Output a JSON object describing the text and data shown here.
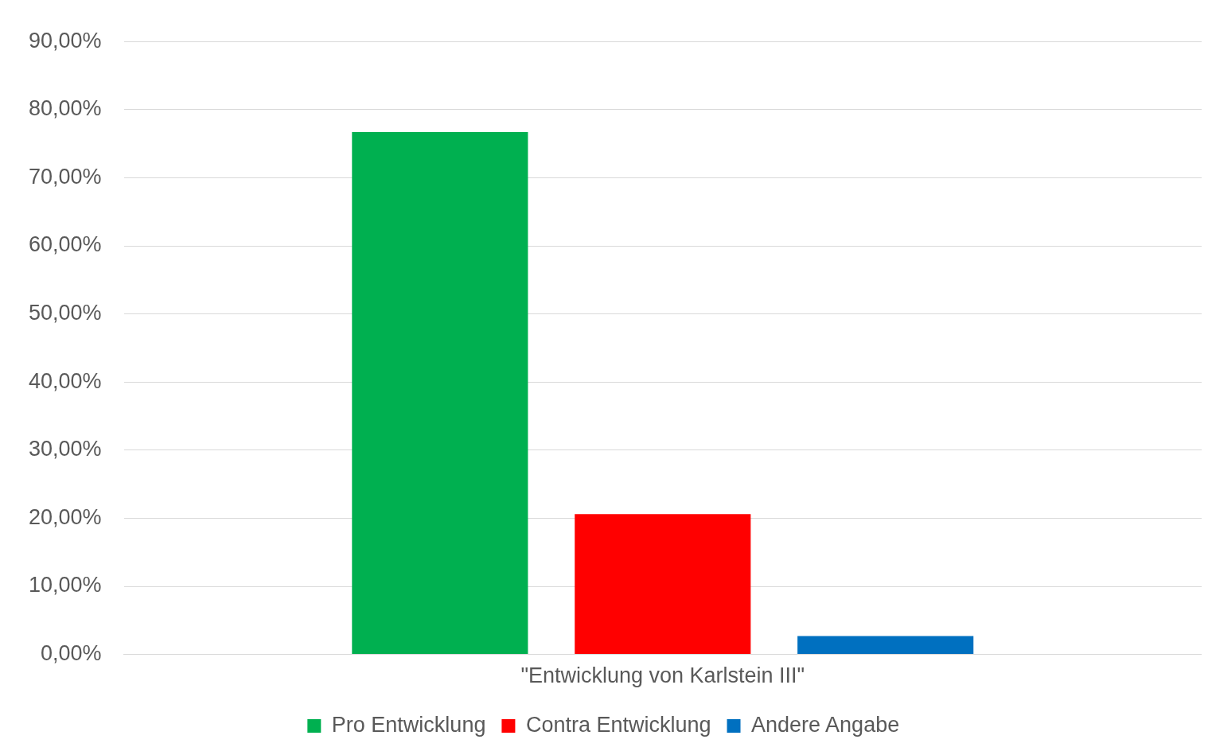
{
  "chart_data": {
    "type": "bar",
    "categories": [
      "\"Entwicklung von Karlstein III\""
    ],
    "series": [
      {
        "name": "Pro Entwicklung",
        "color": "#00b050",
        "values": [
          76.7
        ]
      },
      {
        "name": "Contra Entwicklung",
        "color": "#ff0000",
        "values": [
          20.6
        ]
      },
      {
        "name": "Andere Angabe",
        "color": "#0070c0",
        "values": [
          2.7
        ]
      }
    ],
    "ylim": [
      0,
      90
    ],
    "yticks": [
      {
        "value": 0,
        "label": "0,00%"
      },
      {
        "value": 10,
        "label": "10,00%"
      },
      {
        "value": 20,
        "label": "20,00%"
      },
      {
        "value": 30,
        "label": "30,00%"
      },
      {
        "value": 40,
        "label": "40,00%"
      },
      {
        "value": 50,
        "label": "50,00%"
      },
      {
        "value": 60,
        "label": "60,00%"
      },
      {
        "value": 70,
        "label": "70,00%"
      },
      {
        "value": 80,
        "label": "80,00%"
      },
      {
        "value": 90,
        "label": "90,00%"
      }
    ],
    "grid": "y",
    "legend": "bottom"
  }
}
